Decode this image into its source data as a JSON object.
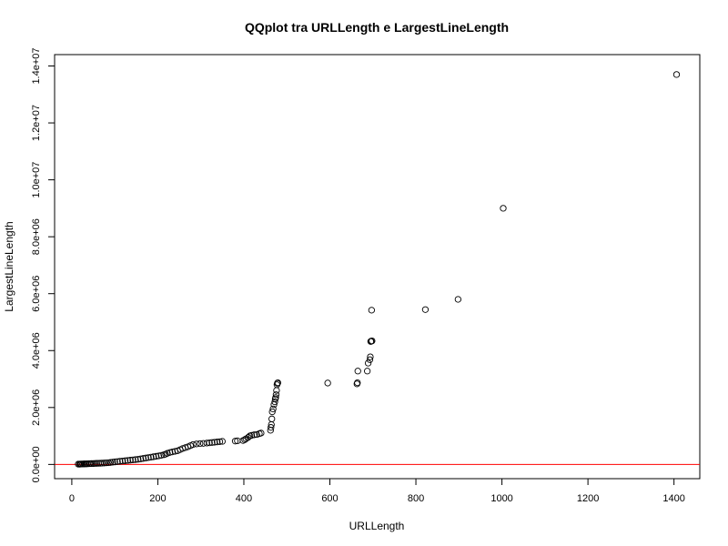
{
  "chart_data": {
    "type": "scatter",
    "title": "QQplot tra URLLength e LargestLineLength",
    "xlabel": "URLLength",
    "ylabel": "LargestLineLength",
    "xlim": [
      -40,
      1460
    ],
    "ylim": [
      -500000,
      14400000
    ],
    "x_ticks": [
      0,
      200,
      400,
      600,
      800,
      1000,
      1200,
      1400
    ],
    "x_tick_labels": [
      "0",
      "200",
      "400",
      "600",
      "800",
      "1000",
      "1200",
      "1400"
    ],
    "y_ticks": [
      0,
      2000000,
      4000000,
      6000000,
      8000000,
      10000000,
      12000000,
      14000000
    ],
    "y_tick_labels": [
      "0.0e+00",
      "2.0e+06",
      "4.0e+06",
      "6.0e+06",
      "8.0e+06",
      "1.0e+07",
      "1.2e+07",
      "1.4e+07"
    ],
    "reference_line": {
      "y": 0,
      "color": "#ff0000"
    },
    "point_color": "#000000",
    "series": [
      {
        "x": [
          15,
          18,
          20,
          22,
          25,
          28,
          30,
          33,
          36,
          40,
          43,
          46,
          50,
          54,
          58,
          62,
          66,
          70,
          75,
          80,
          85,
          90,
          95,
          100,
          106,
          112,
          118,
          124,
          130,
          136,
          142,
          148,
          154,
          160,
          166,
          172,
          178,
          184,
          190,
          196,
          202,
          208,
          214,
          218,
          222,
          228,
          234,
          240,
          246,
          252,
          258,
          264,
          270,
          276,
          282,
          290,
          298,
          306,
          314,
          320,
          326,
          332,
          338,
          344,
          350,
          380,
          385,
          398,
          402,
          405,
          410,
          414,
          418,
          424,
          430,
          436,
          440,
          462,
          463,
          464,
          465,
          466,
          468,
          470,
          472,
          473,
          474,
          475,
          476,
          477,
          478,
          479,
          595,
          663,
          664,
          665,
          687,
          689,
          693,
          694,
          695,
          696,
          697,
          698,
          822,
          898,
          1003,
          1406
        ],
        "y": [
          10000,
          10000,
          12000,
          15000,
          15000,
          18000,
          20000,
          20000,
          22000,
          25000,
          28000,
          30000,
          30000,
          35000,
          38000,
          40000,
          42000,
          45000,
          50000,
          55000,
          60000,
          70000,
          80000,
          90000,
          100000,
          110000,
          120000,
          130000,
          140000,
          150000,
          160000,
          170000,
          180000,
          195000,
          210000,
          225000,
          240000,
          255000,
          270000,
          285000,
          300000,
          320000,
          340000,
          360000,
          390000,
          420000,
          440000,
          460000,
          480000,
          520000,
          560000,
          590000,
          620000,
          660000,
          700000,
          720000,
          730000,
          740000,
          750000,
          760000,
          770000,
          780000,
          790000,
          800000,
          810000,
          820000,
          830000,
          840000,
          870000,
          900000,
          950000,
          1000000,
          1020000,
          1040000,
          1050000,
          1080000,
          1100000,
          1200000,
          1300000,
          1400000,
          1600000,
          1850000,
          1950000,
          2100000,
          2200000,
          2300000,
          2350000,
          2450000,
          2600000,
          2800000,
          2850000,
          2870000,
          2860000,
          2830000,
          2870000,
          3280000,
          3280000,
          3560000,
          3680000,
          3780000,
          4320000,
          4330000,
          5420000,
          4340000,
          5440000,
          5800000,
          9000000,
          13700000
        ]
      }
    ]
  }
}
